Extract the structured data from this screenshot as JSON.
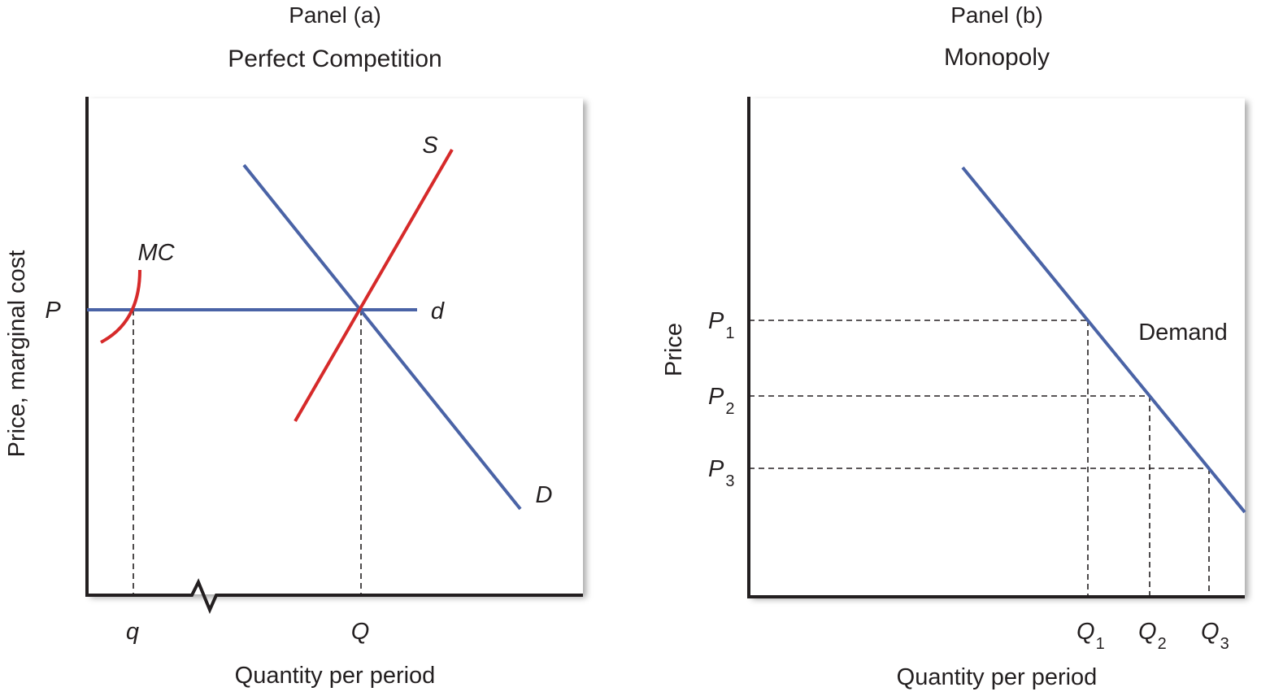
{
  "panel_a": {
    "panel_label": "Panel (a)",
    "title": "Perfect Competition",
    "y_label": "Price, marginal cost",
    "x_label": "Quantity per period",
    "price_label": "P",
    "mc_label": "MC",
    "supply_label": "S",
    "demand_label": "D",
    "firm_demand_label": "d",
    "q_firm_label": "q",
    "q_market_label": "Q"
  },
  "panel_b": {
    "panel_label": "Panel (b)",
    "title": "Monopoly",
    "y_label": "Price",
    "x_label": "Quantity per period",
    "demand_label": "Demand",
    "price_levels": [
      {
        "letter": "P",
        "sub": "1"
      },
      {
        "letter": "P",
        "sub": "2"
      },
      {
        "letter": "P",
        "sub": "3"
      }
    ],
    "quantity_levels": [
      {
        "letter": "Q",
        "sub": "1"
      },
      {
        "letter": "Q",
        "sub": "2"
      },
      {
        "letter": "Q",
        "sub": "3"
      }
    ]
  },
  "colors": {
    "demand_blue": "#4a63a6",
    "supply_red": "#d62a2a",
    "axis": "#231f20"
  }
}
